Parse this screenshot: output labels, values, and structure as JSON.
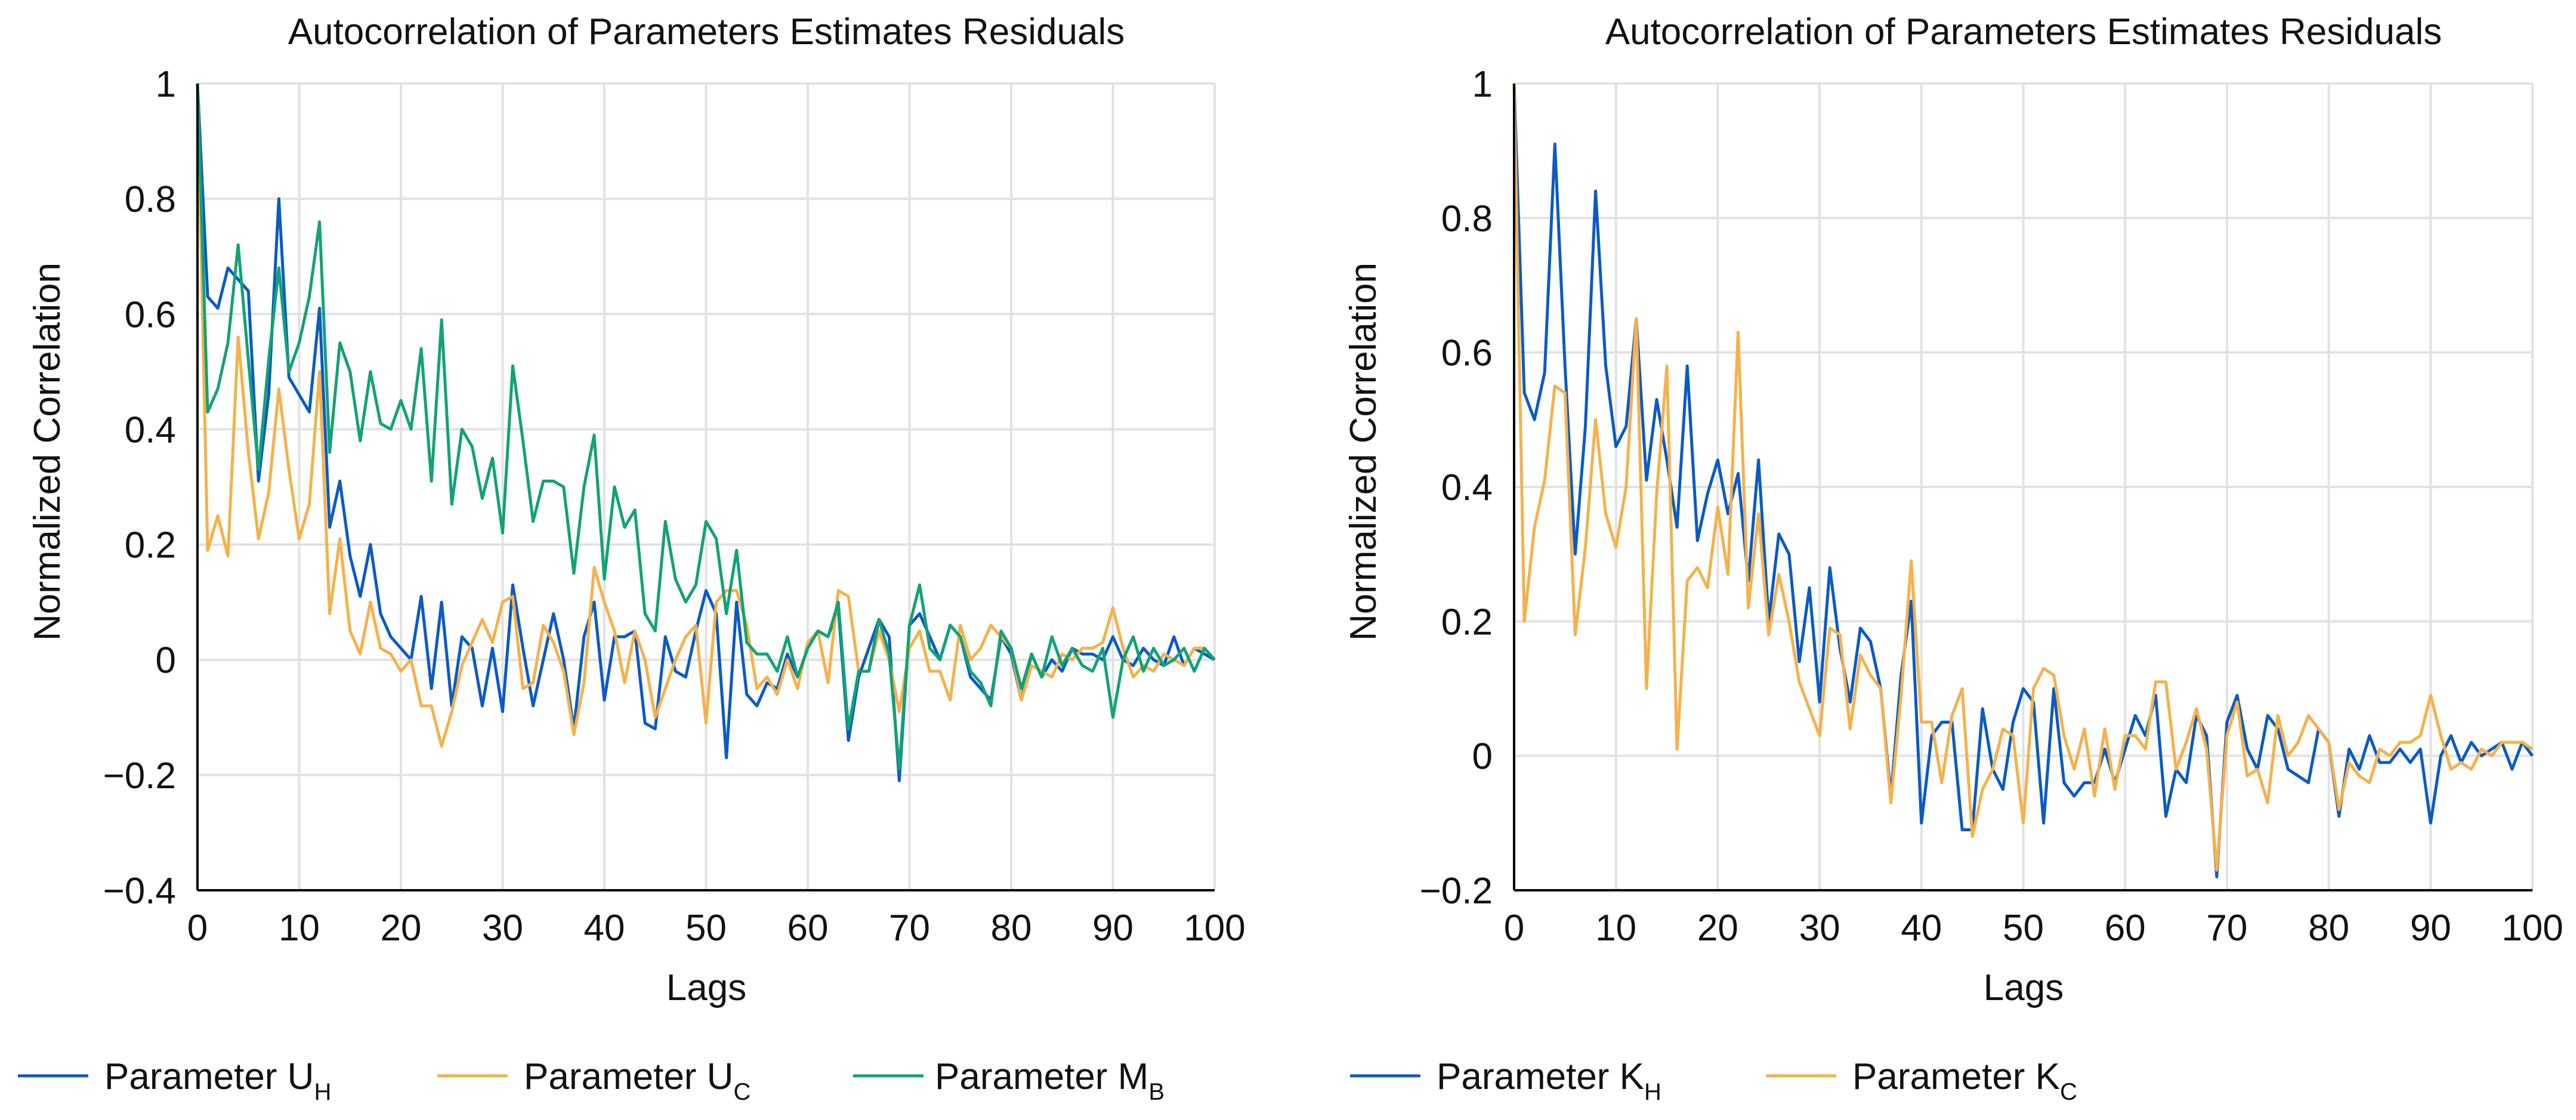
{
  "colors": {
    "blue": "#0a5bc4",
    "orange": "#f5b14b",
    "green": "#12a276",
    "grid": "#e2e2e2",
    "axis": "#000000"
  },
  "chart_data": [
    {
      "type": "line",
      "title": "Autocorrelation of Parameters Estimates Residuals",
      "xlabel": "Lags",
      "ylabel": "Normalized Correlation",
      "xlim": [
        0,
        100
      ],
      "ylim": [
        -0.4,
        1
      ],
      "xticks": [
        0,
        10,
        20,
        30,
        40,
        50,
        60,
        70,
        80,
        90,
        100
      ],
      "yticks": [
        -0.4,
        -0.2,
        0,
        0.2,
        0.4,
        0.6,
        0.8,
        1
      ],
      "xtick_labels": [
        "0",
        "10",
        "20",
        "30",
        "40",
        "50",
        "60",
        "70",
        "80",
        "90",
        "100"
      ],
      "ytick_labels": [
        "−0.4",
        "−0.2",
        "0",
        "0.2",
        "0.4",
        "0.6",
        "0.8",
        "1"
      ],
      "grid": true,
      "legend_position": "bottom",
      "series": [
        {
          "name": "Parameter U",
          "subscript": "H",
          "color": "#0a5bc4",
          "values": [
            1,
            0.63,
            0.61,
            0.68,
            0.66,
            0.64,
            0.31,
            0.46,
            0.8,
            0.49,
            0.46,
            0.43,
            0.61,
            0.23,
            0.31,
            0.18,
            0.11,
            0.2,
            0.08,
            0.04,
            0.02,
            0.0,
            0.11,
            -0.05,
            0.1,
            -0.08,
            0.04,
            0.02,
            -0.08,
            0.02,
            -0.09,
            0.13,
            0.02,
            -0.08,
            0.0,
            0.08,
            0.0,
            -0.12,
            0.04,
            0.1,
            -0.07,
            0.04,
            0.04,
            0.05,
            -0.11,
            -0.12,
            0.04,
            -0.02,
            -0.03,
            0.05,
            0.12,
            0.08,
            -0.17,
            0.1,
            -0.06,
            -0.08,
            -0.04,
            -0.05,
            0.01,
            -0.03,
            0.02,
            0.05,
            0.04,
            0.09,
            -0.14,
            -0.03,
            0.02,
            0.07,
            0.04,
            -0.21,
            0.06,
            0.08,
            0.04,
            0.0,
            0.06,
            0.04,
            -0.03,
            -0.05,
            -0.07,
            0.04,
            0.01,
            -0.07,
            0.01,
            -0.03,
            0.0,
            -0.02,
            0.02,
            0.01,
            0.01,
            0.0,
            0.04,
            0.0,
            -0.01,
            0.02,
            0.0,
            -0.01,
            0.04,
            -0.01,
            0.02,
            0.01,
            0.0
          ]
        },
        {
          "name": "Parameter U",
          "subscript": "C",
          "color": "#f5b14b",
          "values": [
            1,
            0.19,
            0.25,
            0.18,
            0.56,
            0.36,
            0.21,
            0.29,
            0.47,
            0.33,
            0.21,
            0.27,
            0.5,
            0.08,
            0.21,
            0.05,
            0.01,
            0.1,
            0.02,
            0.01,
            -0.02,
            0.0,
            -0.08,
            -0.08,
            -0.15,
            -0.09,
            -0.01,
            0.03,
            0.07,
            0.03,
            0.1,
            0.11,
            -0.05,
            -0.04,
            0.06,
            0.03,
            -0.02,
            -0.13,
            -0.04,
            0.16,
            0.1,
            0.05,
            -0.04,
            0.05,
            0.0,
            -0.1,
            -0.05,
            0.0,
            0.04,
            0.06,
            -0.11,
            0.1,
            0.12,
            0.12,
            0.06,
            -0.05,
            -0.03,
            -0.06,
            0.0,
            -0.05,
            0.03,
            0.05,
            -0.04,
            0.12,
            0.11,
            -0.02,
            -0.02,
            0.05,
            0.0,
            -0.09,
            0.02,
            0.05,
            -0.02,
            -0.02,
            -0.07,
            0.06,
            0.0,
            0.02,
            0.06,
            0.04,
            0.02,
            -0.07,
            -0.01,
            -0.02,
            -0.03,
            0.01,
            0.0,
            0.02,
            0.02,
            0.03,
            0.09,
            0.02,
            -0.03,
            -0.01,
            -0.02,
            0.01,
            0.0,
            -0.01,
            0.02,
            0.02,
            0.0
          ]
        },
        {
          "name": "Parameter M",
          "subscript": "B",
          "color": "#12a276",
          "values": [
            1,
            0.43,
            0.47,
            0.55,
            0.72,
            0.52,
            0.33,
            0.52,
            0.68,
            0.5,
            0.55,
            0.63,
            0.76,
            0.36,
            0.55,
            0.5,
            0.38,
            0.5,
            0.41,
            0.4,
            0.45,
            0.4,
            0.54,
            0.31,
            0.59,
            0.27,
            0.4,
            0.37,
            0.28,
            0.35,
            0.22,
            0.51,
            0.38,
            0.24,
            0.31,
            0.31,
            0.3,
            0.15,
            0.3,
            0.39,
            0.14,
            0.3,
            0.23,
            0.26,
            0.08,
            0.05,
            0.24,
            0.14,
            0.1,
            0.13,
            0.24,
            0.21,
            0.08,
            0.19,
            0.03,
            0.01,
            0.01,
            -0.02,
            0.04,
            -0.03,
            0.02,
            0.05,
            0.04,
            0.1,
            -0.12,
            -0.02,
            -0.02,
            0.07,
            0.01,
            -0.19,
            0.06,
            0.13,
            0.02,
            0.0,
            0.06,
            0.04,
            -0.02,
            -0.04,
            -0.08,
            0.05,
            0.02,
            -0.05,
            0.01,
            -0.03,
            0.04,
            -0.01,
            0.02,
            -0.01,
            -0.02,
            0.02,
            -0.1,
            0.0,
            0.04,
            -0.02,
            0.02,
            -0.01,
            0.0,
            0.02,
            -0.02,
            0.02,
            0.0
          ]
        }
      ]
    },
    {
      "type": "line",
      "title": "Autocorrelation of Parameters Estimates Residuals",
      "xlabel": "Lags",
      "ylabel": "Normalized Correlation",
      "xlim": [
        0,
        100
      ],
      "ylim": [
        -0.2,
        1
      ],
      "xticks": [
        0,
        10,
        20,
        30,
        40,
        50,
        60,
        70,
        80,
        90,
        100
      ],
      "yticks": [
        -0.2,
        0,
        0.2,
        0.4,
        0.6,
        0.8,
        1
      ],
      "xtick_labels": [
        "0",
        "10",
        "20",
        "30",
        "40",
        "50",
        "60",
        "70",
        "80",
        "90",
        "100"
      ],
      "ytick_labels": [
        "−0.2",
        "0",
        "0.2",
        "0.4",
        "0.6",
        "0.8",
        "1"
      ],
      "grid": true,
      "legend_position": "bottom",
      "series": [
        {
          "name": "Parameter K",
          "subscript": "H",
          "color": "#0a5bc4",
          "values": [
            1,
            0.54,
            0.5,
            0.57,
            0.91,
            0.58,
            0.3,
            0.49,
            0.84,
            0.58,
            0.46,
            0.49,
            0.65,
            0.41,
            0.53,
            0.44,
            0.34,
            0.58,
            0.32,
            0.39,
            0.44,
            0.36,
            0.42,
            0.26,
            0.44,
            0.2,
            0.33,
            0.3,
            0.14,
            0.25,
            0.08,
            0.28,
            0.16,
            0.08,
            0.19,
            0.17,
            0.1,
            -0.06,
            0.12,
            0.23,
            -0.1,
            0.03,
            0.05,
            0.05,
            -0.11,
            -0.11,
            0.07,
            -0.02,
            -0.05,
            0.05,
            0.1,
            0.08,
            -0.1,
            0.1,
            -0.04,
            -0.06,
            -0.04,
            -0.04,
            0.01,
            -0.04,
            0.01,
            0.06,
            0.03,
            0.09,
            -0.09,
            -0.02,
            -0.04,
            0.06,
            0.03,
            -0.18,
            0.05,
            0.09,
            0.01,
            -0.02,
            0.06,
            0.04,
            -0.02,
            -0.03,
            -0.04,
            0.04,
            0.02,
            -0.09,
            0.01,
            -0.02,
            0.03,
            -0.01,
            -0.01,
            0.01,
            -0.01,
            0.01,
            -0.1,
            0.0,
            0.03,
            -0.01,
            0.02,
            0.0,
            0.01,
            0.02,
            -0.02,
            0.02,
            0.0
          ]
        },
        {
          "name": "Parameter K",
          "subscript": "C",
          "color": "#f5b14b",
          "values": [
            1,
            0.2,
            0.34,
            0.41,
            0.55,
            0.54,
            0.18,
            0.31,
            0.5,
            0.36,
            0.31,
            0.4,
            0.65,
            0.1,
            0.39,
            0.58,
            0.01,
            0.26,
            0.28,
            0.25,
            0.37,
            0.27,
            0.63,
            0.22,
            0.36,
            0.18,
            0.27,
            0.2,
            0.11,
            0.07,
            0.03,
            0.19,
            0.18,
            0.04,
            0.15,
            0.12,
            0.1,
            -0.07,
            0.09,
            0.29,
            0.05,
            0.05,
            -0.04,
            0.06,
            0.1,
            -0.12,
            -0.05,
            -0.02,
            0.04,
            0.03,
            -0.1,
            0.1,
            0.13,
            0.12,
            0.03,
            -0.02,
            0.04,
            -0.06,
            0.04,
            -0.05,
            0.03,
            0.03,
            0.01,
            0.11,
            0.11,
            -0.02,
            0.02,
            0.07,
            0.01,
            -0.17,
            0.03,
            0.08,
            -0.03,
            -0.02,
            -0.07,
            0.06,
            0.0,
            0.02,
            0.06,
            0.04,
            0.02,
            -0.08,
            -0.01,
            -0.03,
            -0.04,
            0.01,
            0.0,
            0.02,
            0.02,
            0.03,
            0.09,
            0.03,
            -0.02,
            -0.01,
            -0.02,
            0.01,
            0.0,
            0.02,
            0.02,
            0.02,
            0.01
          ]
        }
      ]
    }
  ]
}
